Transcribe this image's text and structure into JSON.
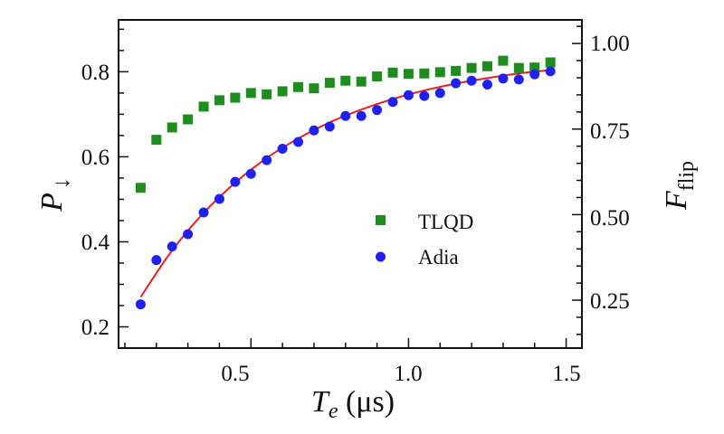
{
  "chart_data": {
    "type": "scatter",
    "xlabel": {
      "main": "T",
      "sub": "e",
      "unit": " (μs)"
    },
    "ylabel": {
      "main": "P",
      "sub": "↓"
    },
    "y2label": {
      "main": "F",
      "sub": "flip"
    },
    "xlim": [
      0.08,
      1.55
    ],
    "ylim": [
      0.15,
      0.922
    ],
    "y2lim": [
      0.11,
      1.069
    ],
    "xticks": [
      "0.5",
      "1.0",
      "1.5"
    ],
    "yticks": [
      "0.2",
      "0.4",
      "0.6",
      "0.8"
    ],
    "y2ticks": [
      "0.25",
      "0.50",
      "0.75",
      "1.00"
    ],
    "grid": false,
    "legend_position": "center-right",
    "x": [
      0.15,
      0.2,
      0.25,
      0.3,
      0.35,
      0.4,
      0.45,
      0.5,
      0.55,
      0.6,
      0.65,
      0.7,
      0.75,
      0.8,
      0.85,
      0.9,
      0.95,
      1.0,
      1.05,
      1.1,
      1.15,
      1.2,
      1.25,
      1.3,
      1.35,
      1.4,
      1.45
    ],
    "series": [
      {
        "name": "TLQD",
        "marker": "square",
        "color": "#1e8c1e",
        "values": [
          0.527,
          0.64,
          0.669,
          0.688,
          0.718,
          0.733,
          0.739,
          0.75,
          0.747,
          0.754,
          0.764,
          0.761,
          0.774,
          0.779,
          0.777,
          0.789,
          0.798,
          0.795,
          0.796,
          0.799,
          0.802,
          0.809,
          0.813,
          0.826,
          0.809,
          0.81,
          0.822
        ]
      },
      {
        "name": "Adia",
        "marker": "circle",
        "color": "#2020f0",
        "values": [
          0.253,
          0.357,
          0.389,
          0.418,
          0.469,
          0.501,
          0.541,
          0.56,
          0.592,
          0.619,
          0.635,
          0.662,
          0.671,
          0.696,
          0.696,
          0.71,
          0.729,
          0.745,
          0.743,
          0.75,
          0.773,
          0.779,
          0.77,
          0.784,
          0.782,
          0.794,
          0.801
        ]
      }
    ],
    "fit": {
      "color": "#e82020",
      "x": [
        0.15,
        0.25,
        0.35,
        0.45,
        0.55,
        0.65,
        0.75,
        0.85,
        0.95,
        1.05,
        1.15,
        1.25,
        1.35,
        1.45
      ],
      "y": [
        0.27,
        0.38,
        0.468,
        0.539,
        0.597,
        0.643,
        0.681,
        0.711,
        0.736,
        0.756,
        0.772,
        0.785,
        0.796,
        0.804
      ]
    }
  }
}
